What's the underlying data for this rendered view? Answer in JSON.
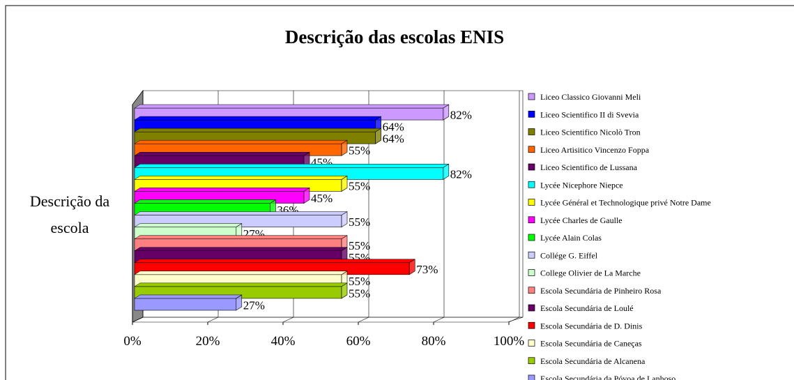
{
  "chart_data": {
    "type": "bar3d_horizontal",
    "title": "Descrição das escolas ENIS",
    "categories": [
      "Descrição da escola"
    ],
    "xlim": [
      0,
      100
    ],
    "xticks": [
      {
        "value": 0,
        "label": "0%"
      },
      {
        "value": 20,
        "label": "20%"
      },
      {
        "value": 40,
        "label": "40%"
      },
      {
        "value": 60,
        "label": "60%"
      },
      {
        "value": 80,
        "label": "80%"
      },
      {
        "value": 100,
        "label": "100%"
      }
    ],
    "grid": true,
    "legend": "right",
    "series": [
      {
        "name": "Liceo Classico Giovanni Meli",
        "color": "#CC99FF",
        "values": [
          82
        ],
        "value_labels": [
          "82%"
        ]
      },
      {
        "name": "Liceo Scientifico II di Svevia",
        "color": "#0000FF",
        "values": [
          64
        ],
        "value_labels": [
          "64%"
        ]
      },
      {
        "name": "Liceo Scientifico Nicolò Tron",
        "color": "#808000",
        "values": [
          64
        ],
        "value_labels": [
          "64%"
        ]
      },
      {
        "name": "Liceo Artisitico Vincenzo Foppa",
        "color": "#FF6600",
        "values": [
          55
        ],
        "value_labels": [
          "55%"
        ]
      },
      {
        "name": "Liceo Scientifico de Lussana",
        "color": "#660066",
        "values": [
          45
        ],
        "value_labels": [
          "45%"
        ]
      },
      {
        "name": "Lycée Nicephore Niepce",
        "color": "#00FFFF",
        "values": [
          82
        ],
        "value_labels": [
          "82%"
        ]
      },
      {
        "name": "Lycée Général et Technologique privé Notre Dame",
        "color": "#FFFF00",
        "values": [
          55
        ],
        "value_labels": [
          "55%"
        ]
      },
      {
        "name": "Lycée Charles de Gaulle",
        "color": "#FF00FF",
        "values": [
          45
        ],
        "value_labels": [
          "45%"
        ]
      },
      {
        "name": "Lycée Alain Colas",
        "color": "#00FF00",
        "values": [
          36
        ],
        "value_labels": [
          "36%"
        ]
      },
      {
        "name": "Collége G. Eiffel",
        "color": "#CCCCFF",
        "values": [
          55
        ],
        "value_labels": [
          "55%"
        ]
      },
      {
        "name": "College Olivier de La Marche",
        "color": "#CCFFCC",
        "values": [
          27
        ],
        "value_labels": [
          "27%"
        ]
      },
      {
        "name": "Escola Secundária de Pinheiro Rosa",
        "color": "#FF8080",
        "values": [
          55
        ],
        "value_labels": [
          "55%"
        ]
      },
      {
        "name": "Escola Secundária de Loulé",
        "color": "#660066",
        "values": [
          55
        ],
        "value_labels": [
          "55%"
        ]
      },
      {
        "name": "Escola Secundária de D. Dinis",
        "color": "#FF0000",
        "values": [
          73
        ],
        "value_labels": [
          "73%"
        ]
      },
      {
        "name": "Escola Secundária de Caneças",
        "color": "#FFFFCC",
        "values": [
          55
        ],
        "value_labels": [
          "55%"
        ]
      },
      {
        "name": "Escola Secundária de Alcanena",
        "color": "#99CC00",
        "values": [
          55
        ],
        "value_labels": [
          "55%"
        ]
      },
      {
        "name": "Escola Secundária da Póvoa de Lanhoso",
        "color": "#9999FF",
        "values": [
          27
        ],
        "value_labels": [
          "27%"
        ]
      }
    ]
  }
}
